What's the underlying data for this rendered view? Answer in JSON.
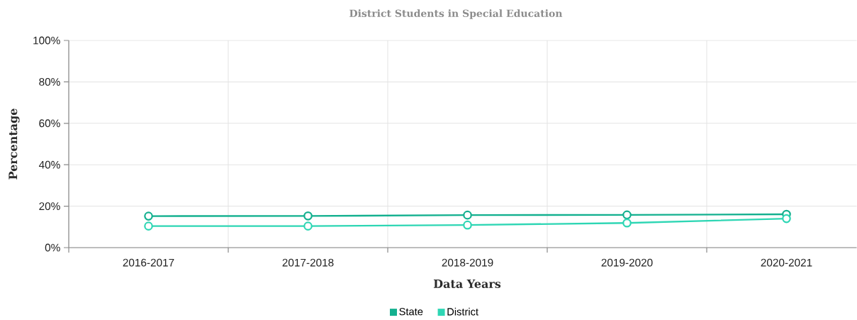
{
  "chart_data": {
    "type": "line",
    "title": "District Students in Special Education",
    "xlabel": "Data Years",
    "ylabel": "Percentage",
    "categories": [
      "2016-2017",
      "2017-2018",
      "2018-2019",
      "2019-2020",
      "2020-2021"
    ],
    "series": [
      {
        "name": "State",
        "color": "#13b08f",
        "values": [
          15.2,
          15.3,
          15.7,
          15.8,
          16.1
        ]
      },
      {
        "name": "District",
        "color": "#2ed6b4",
        "values": [
          10.4,
          10.4,
          10.9,
          11.9,
          14.0
        ]
      }
    ],
    "ylim": [
      0,
      100
    ],
    "yticks": [
      {
        "value": 0,
        "label": "0%"
      },
      {
        "value": 20,
        "label": "20%"
      },
      {
        "value": 40,
        "label": "40%"
      },
      {
        "value": 60,
        "label": "60%"
      },
      {
        "value": 80,
        "label": "80%"
      },
      {
        "value": 100,
        "label": "100%"
      }
    ],
    "grid": true,
    "legend": "bottom",
    "marker": "circle",
    "line_style": "solid"
  }
}
